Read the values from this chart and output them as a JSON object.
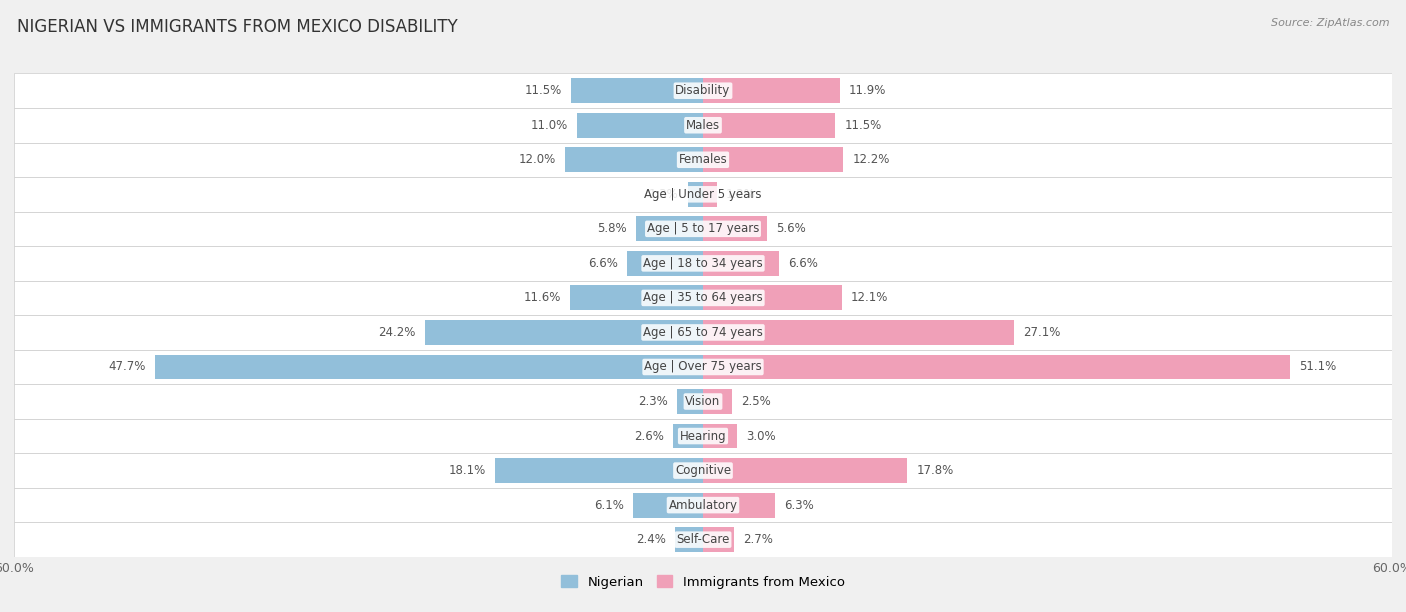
{
  "title": "NIGERIAN VS IMMIGRANTS FROM MEXICO DISABILITY",
  "source": "Source: ZipAtlas.com",
  "categories": [
    "Disability",
    "Males",
    "Females",
    "Age | Under 5 years",
    "Age | 5 to 17 years",
    "Age | 18 to 34 years",
    "Age | 35 to 64 years",
    "Age | 65 to 74 years",
    "Age | Over 75 years",
    "Vision",
    "Hearing",
    "Cognitive",
    "Ambulatory",
    "Self-Care"
  ],
  "nigerian": [
    11.5,
    11.0,
    12.0,
    1.3,
    5.8,
    6.6,
    11.6,
    24.2,
    47.7,
    2.3,
    2.6,
    18.1,
    6.1,
    2.4
  ],
  "mexico": [
    11.9,
    11.5,
    12.2,
    1.2,
    5.6,
    6.6,
    12.1,
    27.1,
    51.1,
    2.5,
    3.0,
    17.8,
    6.3,
    2.7
  ],
  "nigerian_color": "#92bfda",
  "mexico_color": "#f0a0b8",
  "nigerian_label": "Nigerian",
  "mexico_label": "Immigrants from Mexico",
  "axis_max": 60.0,
  "background_color": "#f0f0f0",
  "bar_height": 0.72,
  "title_fontsize": 12,
  "label_fontsize": 8.5,
  "tick_fontsize": 9,
  "category_fontsize": 8.5
}
